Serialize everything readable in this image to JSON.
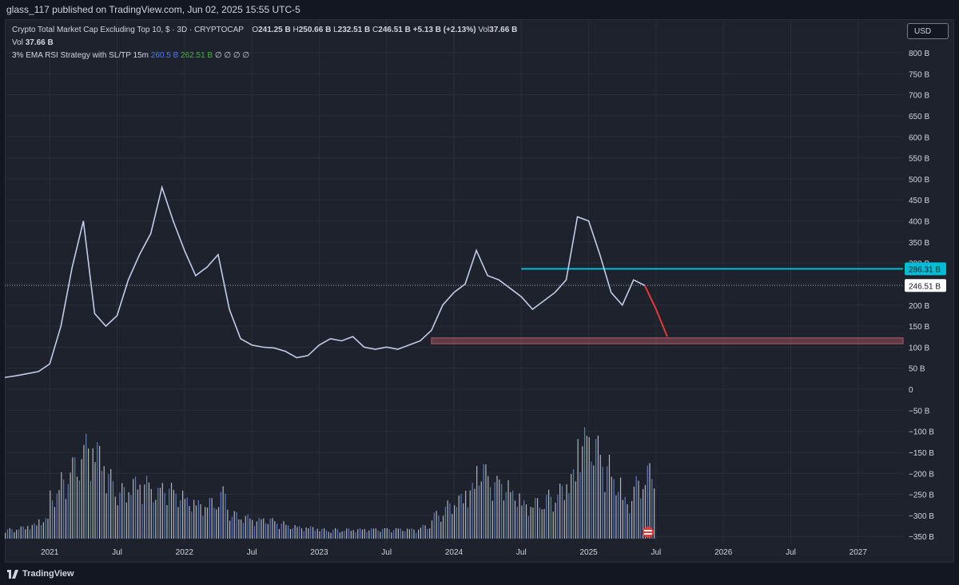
{
  "header": {
    "publisher_line": "glass_117 published on TradingView.com, Jun 02, 2025 15:55 UTC-5"
  },
  "legend": {
    "symbol": "Crypto Total Market Cap Excluding Top 10, $ · 3D · CRYPTOCAP",
    "o_label": "O",
    "o_value": "241.25 B",
    "h_label": "H",
    "h_value": "250.66 B",
    "l_label": "L",
    "l_value": "232.51 B",
    "c_label": "C",
    "c_value": "246.51 B",
    "change": "+5.13 B (+2.13%)",
    "vol_inline_label": "Vol",
    "vol_inline_value": "37.66 B",
    "vol_label": "Vol",
    "vol_value": "37.66 B",
    "strategy_name": "3% EMA RSI Strategy with SL/TP 15m",
    "strategy_value_1": "260.5 B",
    "strategy_value_2": "262.51 B",
    "strategy_placeholders": "∅ ∅ ∅ ∅"
  },
  "currency_button": "USD",
  "footer": {
    "brand": "TradingView"
  },
  "colors": {
    "background": "#1e222d",
    "grid": "#2a2e39",
    "candle_line": "#c3cbe8",
    "resistance": "#00bcd4",
    "projection": "#e53935",
    "support_zone": "#b05a68",
    "volume_light": "#b2b5be",
    "volume_blue": "#5b7cc4",
    "price_badge": "#ffffff"
  },
  "chart_data": {
    "type": "line",
    "series": [
      {
        "values_x": [
          "2020-09",
          "2020-10",
          "2020-11",
          "2020-12",
          "2021-01",
          "2021-02",
          "2021-03",
          "2021-04",
          "2021-05",
          "2021-06",
          "2021-07",
          "2021-08",
          "2021-09",
          "2021-10",
          "2021-11",
          "2021-12",
          "2022-01",
          "2022-02",
          "2022-03",
          "2022-04",
          "2022-05",
          "2022-06",
          "2022-07",
          "2022-08",
          "2022-09",
          "2022-10",
          "2022-11",
          "2022-12",
          "2023-01",
          "2023-02",
          "2023-03",
          "2023-04",
          "2023-05",
          "2023-06",
          "2023-07",
          "2023-08",
          "2023-09",
          "2023-10",
          "2023-11",
          "2023-12",
          "2024-01",
          "2024-02",
          "2024-03",
          "2024-04",
          "2024-05",
          "2024-06",
          "2024-07",
          "2024-08",
          "2024-09",
          "2024-10",
          "2024-11",
          "2024-12",
          "2025-01",
          "2025-02",
          "2025-03",
          "2025-04",
          "2025-05",
          "2025-06"
        ],
        "values_y": [
          28,
          32,
          37,
          42,
          60,
          150,
          290,
          400,
          180,
          150,
          175,
          260,
          320,
          370,
          480,
          400,
          330,
          270,
          290,
          320,
          190,
          120,
          105,
          100,
          98,
          90,
          75,
          80,
          105,
          120,
          115,
          125,
          100,
          95,
          100,
          95,
          105,
          115,
          140,
          200,
          230,
          250,
          330,
          270,
          260,
          240,
          220,
          190,
          210,
          230,
          260,
          410,
          400,
          320,
          230,
          200,
          260,
          246.51
        ]
      }
    ],
    "projection": {
      "x": [
        "2025-06",
        "2025-07",
        "2025-08"
      ],
      "y": [
        246.51,
        190,
        125
      ]
    },
    "resistance_level": 286.31,
    "last_price": 246.51,
    "support_zone": {
      "from_x": "2023-11",
      "to_x": "2027-05",
      "low": 108,
      "high": 122
    },
    "volume": {
      "values_x": [
        "2020-09",
        "2020-10",
        "2020-11",
        "2020-12",
        "2021-01",
        "2021-02",
        "2021-03",
        "2021-04",
        "2021-05",
        "2021-06",
        "2021-07",
        "2021-08",
        "2021-09",
        "2021-10",
        "2021-11",
        "2021-12",
        "2022-01",
        "2022-02",
        "2022-03",
        "2022-04",
        "2022-05",
        "2022-06",
        "2022-07",
        "2022-08",
        "2022-09",
        "2022-10",
        "2022-11",
        "2022-12",
        "2023-01",
        "2023-02",
        "2023-03",
        "2023-04",
        "2023-05",
        "2023-06",
        "2023-07",
        "2023-08",
        "2023-09",
        "2023-10",
        "2023-11",
        "2023-12",
        "2024-01",
        "2024-02",
        "2024-03",
        "2024-04",
        "2024-05",
        "2024-06",
        "2024-07",
        "2024-08",
        "2024-09",
        "2024-10",
        "2024-11",
        "2024-12",
        "2025-01",
        "2025-02",
        "2025-03",
        "2025-04",
        "2025-05",
        "2025-06"
      ],
      "values": [
        15,
        18,
        22,
        30,
        70,
        95,
        120,
        150,
        140,
        100,
        80,
        90,
        90,
        75,
        80,
        70,
        60,
        55,
        60,
        75,
        40,
        35,
        30,
        30,
        25,
        20,
        18,
        18,
        15,
        15,
        15,
        15,
        15,
        15,
        15,
        15,
        15,
        20,
        40,
        55,
        65,
        80,
        110,
        90,
        85,
        70,
        55,
        60,
        70,
        80,
        100,
        160,
        150,
        120,
        90,
        60,
        90,
        110
      ]
    },
    "y_ticks": [
      "800 B",
      "750 B",
      "700 B",
      "650 B",
      "600 B",
      "550 B",
      "500 B",
      "450 B",
      "400 B",
      "350 B",
      "300 B",
      "250 B",
      "200 B",
      "150 B",
      "100 B",
      "50 B",
      "0",
      "−50 B",
      "−100 B",
      "−150 B",
      "−200 B",
      "−250 B",
      "−300 B",
      "−350 B"
    ],
    "y_tick_values": [
      800,
      750,
      700,
      650,
      600,
      550,
      500,
      450,
      400,
      350,
      300,
      250,
      200,
      150,
      100,
      50,
      0,
      -50,
      -100,
      -150,
      -200,
      -250,
      -300,
      -350
    ],
    "x_ticks": [
      "2021",
      "Jul",
      "2022",
      "Jul",
      "2023",
      "Jul",
      "2024",
      "Jul",
      "2025",
      "Jul",
      "2026",
      "Jul",
      "2027"
    ],
    "x_tick_dates": [
      "2021-01",
      "2021-07",
      "2022-01",
      "2022-07",
      "2023-01",
      "2023-07",
      "2024-01",
      "2024-07",
      "2025-01",
      "2025-07",
      "2026-01",
      "2026-07",
      "2027-01"
    ],
    "price_labels": {
      "resistance": "286.31 B",
      "last": "246.51 B"
    },
    "ylim": [
      -365,
      800
    ],
    "xlim": [
      "2020-09",
      "2027-05"
    ],
    "grid": true
  }
}
